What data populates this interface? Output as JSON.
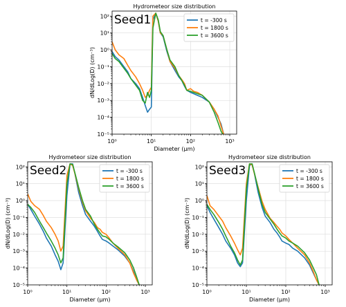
{
  "chart_data": [
    {
      "type": "line",
      "title": "Hydrometeor size distribution",
      "panel_label": "Seed1",
      "xlabel": "Diameter (µm)",
      "ylabel": "dN/dLog(D) (cm⁻³)",
      "xscale": "log",
      "yscale": "log",
      "xlim": [
        1,
        1500
      ],
      "ylim": [
        1e-05,
        200
      ],
      "x_ticks": [
        "10⁰",
        "10¹",
        "10²",
        "10³"
      ],
      "y_ticks": [
        "10⁻⁵",
        "10⁻⁴",
        "10⁻³",
        "10⁻²",
        "10⁻¹",
        "10⁰",
        "10¹",
        "10²"
      ],
      "grid": true,
      "legend_position": "top-right",
      "series": [
        {
          "name": "t = -300 s",
          "color": "#1f77b4",
          "x": [
            1,
            1.2,
            1.5,
            2,
            2.5,
            3,
            4,
            5,
            6,
            7,
            8,
            9,
            10,
            11,
            13,
            15,
            17,
            20,
            25,
            30,
            40,
            50,
            60,
            70,
            80,
            100,
            120,
            150,
            200,
            300,
            400,
            500,
            600,
            700
          ],
          "y": [
            0.8,
            0.4,
            0.25,
            0.1,
            0.05,
            0.02,
            0.01,
            0.005,
            0.0015,
            0.0005,
            0.0002,
            0.0003,
            0.0004,
            60,
            150,
            50,
            10,
            6,
            0.8,
            0.2,
            0.06,
            0.025,
            0.015,
            0.007,
            0.004,
            0.003,
            0.0025,
            0.002,
            0.0015,
            0.0008,
            0.0003,
            0.0001,
            4e-05,
            1e-05
          ]
        },
        {
          "name": "t = 1800 s",
          "color": "#ff7f0e",
          "x": [
            1,
            1.2,
            1.5,
            2,
            2.5,
            3,
            4,
            5,
            6,
            7,
            8,
            9,
            10,
            11,
            13,
            15,
            17,
            20,
            25,
            30,
            40,
            50,
            60,
            70,
            80,
            100,
            120,
            150,
            200,
            300,
            400,
            500,
            600,
            700
          ],
          "y": [
            3,
            1,
            0.5,
            0.3,
            0.12,
            0.06,
            0.025,
            0.01,
            0.004,
            0.0015,
            0.002,
            0.004,
            0.006,
            100,
            150,
            50,
            10,
            7,
            1,
            0.2,
            0.08,
            0.03,
            0.017,
            0.01,
            0.004,
            0.005,
            0.0035,
            0.003,
            0.002,
            0.0008,
            0.0003,
            0.00012,
            3e-05,
            1e-05
          ]
        },
        {
          "name": "t = 3600 s",
          "color": "#2ca02c",
          "x": [
            1,
            1.2,
            1.5,
            2,
            2.5,
            3,
            4,
            5,
            6,
            7,
            8,
            9,
            10,
            11,
            13,
            15,
            17,
            20,
            25,
            30,
            40,
            50,
            60,
            70,
            80,
            100,
            120,
            150,
            200,
            300,
            400,
            500,
            600,
            700
          ],
          "y": [
            0.6,
            0.3,
            0.2,
            0.08,
            0.04,
            0.02,
            0.008,
            0.004,
            0.001,
            0.0007,
            0.003,
            0.0015,
            0.004,
            20,
            150,
            60,
            12,
            7,
            1,
            0.25,
            0.1,
            0.03,
            0.015,
            0.008,
            0.004,
            0.0035,
            0.003,
            0.0025,
            0.002,
            0.0008,
            0.0002,
            5e-05,
            1.5e-05,
            8e-06
          ]
        }
      ]
    },
    {
      "type": "line",
      "title": "Hydrometeor size distribution",
      "panel_label": "Seed2",
      "xlabel": "Diameter (µm)",
      "ylabel": "dN/dLog(D) (cm⁻³)",
      "xscale": "log",
      "yscale": "log",
      "xlim": [
        1,
        1500
      ],
      "ylim": [
        1e-05,
        200
      ],
      "x_ticks": [
        "10⁰",
        "10¹",
        "10²",
        "10³"
      ],
      "y_ticks": [
        "10⁻⁵",
        "10⁻⁴",
        "10⁻³",
        "10⁻²",
        "10⁻¹",
        "10⁰",
        "10¹",
        "10²"
      ],
      "grid": true,
      "legend_position": "top-right",
      "series": [
        {
          "name": "t = -300 s",
          "color": "#1f77b4",
          "x": [
            1,
            1.2,
            1.5,
            2,
            2.5,
            3,
            4,
            5,
            6,
            7,
            8,
            10,
            12,
            14,
            16,
            20,
            25,
            30,
            40,
            50,
            60,
            70,
            80,
            100,
            120,
            150,
            200,
            300,
            400,
            500,
            600,
            700
          ],
          "y": [
            0.6,
            0.3,
            0.12,
            0.04,
            0.015,
            0.006,
            0.002,
            0.0006,
            0.00025,
            8e-05,
            0.0002,
            2,
            150,
            150,
            40,
            3,
            0.5,
            0.15,
            0.06,
            0.03,
            0.015,
            0.008,
            0.005,
            0.004,
            0.003,
            0.002,
            0.0012,
            0.0005,
            0.0002,
            6e-05,
            2e-05,
            1e-05
          ]
        },
        {
          "name": "t = 1800 s",
          "color": "#ff7f0e",
          "x": [
            1,
            1.2,
            1.5,
            2,
            2.5,
            3,
            4,
            5,
            6,
            7,
            8,
            10,
            12,
            14,
            16,
            20,
            25,
            30,
            40,
            50,
            60,
            70,
            80,
            100,
            120,
            150,
            200,
            300,
            400,
            500,
            600,
            700
          ],
          "y": [
            2.5,
            0.9,
            0.5,
            0.3,
            0.13,
            0.06,
            0.025,
            0.01,
            0.004,
            0.001,
            0.002,
            30,
            150,
            120,
            40,
            5,
            0.8,
            0.25,
            0.09,
            0.05,
            0.025,
            0.02,
            0.013,
            0.01,
            0.006,
            0.003,
            0.0015,
            0.0006,
            0.0002,
            5e-05,
            2e-05,
            1e-05
          ]
        },
        {
          "name": "t = 3600 s",
          "color": "#2ca02c",
          "x": [
            1,
            1.2,
            1.5,
            2,
            2.5,
            3,
            4,
            5,
            6,
            7,
            8,
            10,
            12,
            14,
            16,
            20,
            25,
            30,
            40,
            50,
            60,
            70,
            80,
            100,
            120,
            150,
            200,
            300,
            400,
            500,
            600,
            700
          ],
          "y": [
            0.6,
            0.4,
            0.2,
            0.06,
            0.025,
            0.012,
            0.004,
            0.0015,
            0.0006,
            0.0002,
            0.0004,
            10,
            150,
            140,
            45,
            6,
            1,
            0.3,
            0.12,
            0.04,
            0.02,
            0.012,
            0.008,
            0.007,
            0.005,
            0.003,
            0.0018,
            0.0008,
            0.0003,
            0.0001,
            3e-05,
            1e-05
          ]
        }
      ]
    },
    {
      "type": "line",
      "title": "Hydrometeor size distribution",
      "panel_label": "Seed3",
      "xlabel": "Diameter (µm)",
      "ylabel": "dN/dLog(D) (cm⁻³)",
      "xscale": "log",
      "yscale": "log",
      "xlim": [
        1,
        1500
      ],
      "ylim": [
        1e-05,
        200
      ],
      "x_ticks": [
        "10⁰",
        "10¹",
        "10²",
        "10³"
      ],
      "y_ticks": [
        "10⁻⁵",
        "10⁻⁴",
        "10⁻³",
        "10⁻²",
        "10⁻¹",
        "10⁰",
        "10¹",
        "10²"
      ],
      "grid": true,
      "legend_position": "top-right",
      "series": [
        {
          "name": "t = -300 s",
          "color": "#1f77b4",
          "x": [
            1,
            1.2,
            1.5,
            2,
            2.5,
            3,
            4,
            5,
            6,
            7,
            8,
            10,
            12,
            14,
            16,
            20,
            25,
            30,
            40,
            50,
            60,
            70,
            80,
            100,
            120,
            150,
            200,
            300,
            400,
            500,
            600,
            700
          ],
          "y": [
            0.5,
            0.2,
            0.08,
            0.025,
            0.01,
            0.004,
            0.0015,
            0.0006,
            0.0002,
            0.00012,
            0.0002,
            1,
            120,
            150,
            40,
            3,
            0.4,
            0.12,
            0.05,
            0.02,
            0.012,
            0.007,
            0.004,
            0.003,
            0.0025,
            0.0015,
            0.001,
            0.0004,
            0.00015,
            5e-05,
            2e-05,
            1e-05
          ]
        },
        {
          "name": "t = 1800 s",
          "color": "#ff7f0e",
          "x": [
            1,
            1.2,
            1.5,
            2,
            2.5,
            3,
            4,
            5,
            6,
            7,
            8,
            10,
            12,
            14,
            16,
            20,
            25,
            30,
            40,
            50,
            60,
            70,
            80,
            100,
            120,
            150,
            200,
            300,
            400,
            500,
            600,
            700
          ],
          "y": [
            2,
            0.5,
            0.3,
            0.12,
            0.06,
            0.025,
            0.008,
            0.003,
            0.0012,
            0.0006,
            0.0015,
            10,
            150,
            130,
            40,
            6,
            0.9,
            0.3,
            0.09,
            0.05,
            0.03,
            0.02,
            0.012,
            0.008,
            0.005,
            0.003,
            0.0015,
            0.0006,
            0.0002,
            6e-05,
            2e-05,
            1e-05
          ]
        },
        {
          "name": "t = 3600 s",
          "color": "#2ca02c",
          "x": [
            1,
            1.2,
            1.5,
            2,
            2.5,
            3,
            4,
            5,
            6,
            7,
            8,
            10,
            12,
            14,
            16,
            20,
            25,
            30,
            40,
            50,
            60,
            70,
            80,
            100,
            120,
            150,
            200,
            300,
            400,
            500,
            600,
            700
          ],
          "y": [
            0.6,
            0.3,
            0.15,
            0.05,
            0.02,
            0.008,
            0.002,
            0.0008,
            0.0003,
            0.00015,
            0.0003,
            5,
            150,
            150,
            45,
            5,
            0.6,
            0.2,
            0.08,
            0.04,
            0.02,
            0.012,
            0.008,
            0.006,
            0.004,
            0.003,
            0.002,
            0.0008,
            0.0003,
            0.0001,
            4e-05,
            1e-05
          ]
        }
      ]
    }
  ]
}
